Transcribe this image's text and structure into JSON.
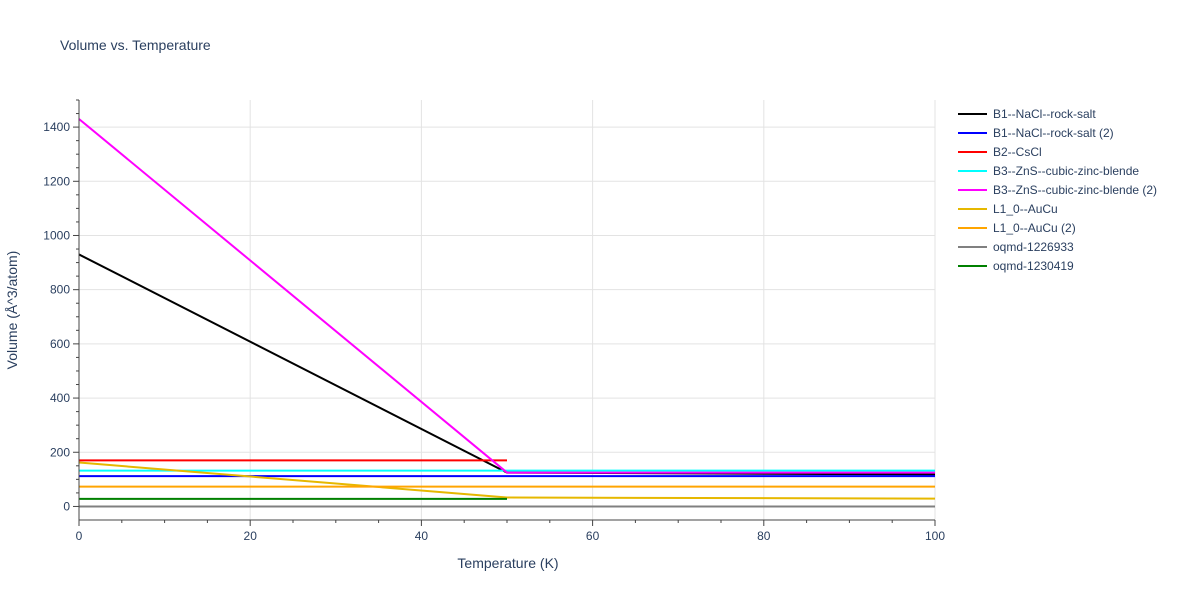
{
  "chart_data": {
    "type": "line",
    "title": "Volume vs. Temperature",
    "xlabel": "Temperature (K)",
    "ylabel": "Volume (Å^3/atom)",
    "xlim": [
      0,
      100
    ],
    "ylim": [
      -50,
      1500
    ],
    "x_ticks": [
      0,
      20,
      40,
      60,
      80,
      100
    ],
    "y_ticks": [
      0,
      200,
      400,
      600,
      800,
      1000,
      1200,
      1400
    ],
    "grid": true,
    "legend_position": "right",
    "series": [
      {
        "name": "B1--NaCl--rock-salt",
        "color": "#000000",
        "x": [
          0,
          50,
          100
        ],
        "y": [
          930,
          125,
          118
        ]
      },
      {
        "name": "B1--NaCl--rock-salt (2)",
        "color": "#0000ff",
        "x": [
          0,
          100
        ],
        "y": [
          112,
          112
        ]
      },
      {
        "name": "B2--CsCl",
        "color": "#ff0000",
        "x": [
          0,
          50
        ],
        "y": [
          170,
          170
        ]
      },
      {
        "name": "B3--ZnS--cubic-zinc-blende",
        "color": "#00ffff",
        "x": [
          0,
          100
        ],
        "y": [
          132,
          132
        ]
      },
      {
        "name": "B3--ZnS--cubic-zinc-blende (2)",
        "color": "#ff00ff",
        "x": [
          0,
          50,
          100
        ],
        "y": [
          1430,
          125,
          125
        ]
      },
      {
        "name": "L1_0--AuCu",
        "color": "#e6b800",
        "x": [
          0,
          50,
          100
        ],
        "y": [
          162,
          33,
          29
        ]
      },
      {
        "name": "L1_0--AuCu (2)",
        "color": "#ffa500",
        "x": [
          0,
          100
        ],
        "y": [
          73,
          73
        ]
      },
      {
        "name": "oqmd-1226933",
        "color": "#808080",
        "x": [
          0,
          100
        ],
        "y": [
          0,
          0
        ]
      },
      {
        "name": "oqmd-1230419",
        "color": "#008000",
        "x": [
          0,
          50
        ],
        "y": [
          28,
          28
        ]
      }
    ]
  }
}
